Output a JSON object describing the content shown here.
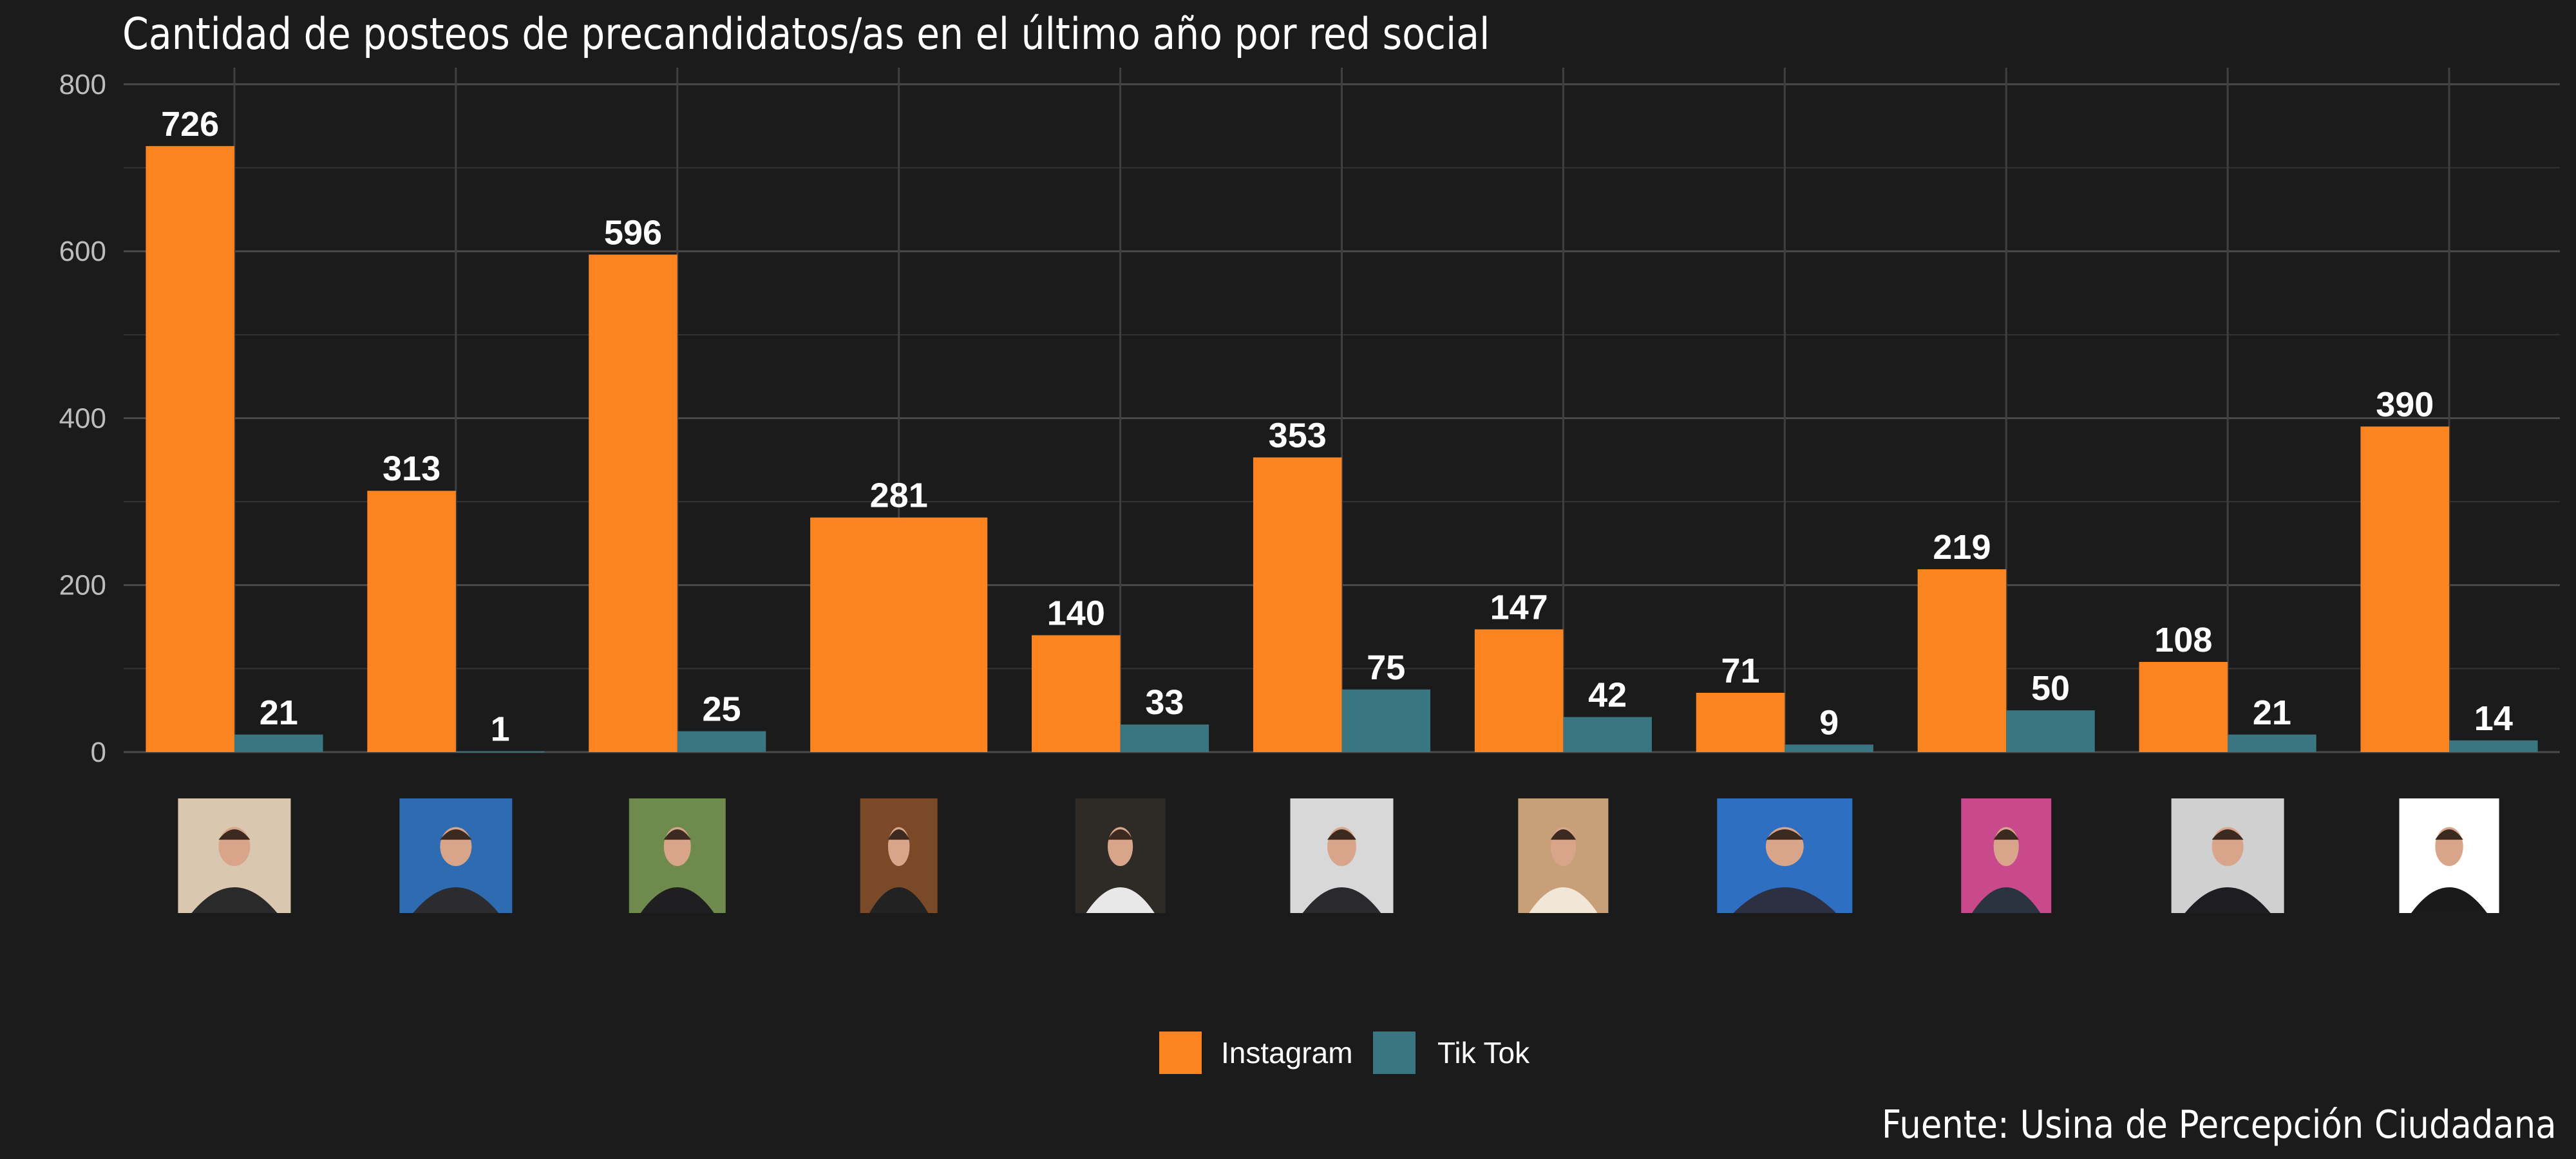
{
  "chart_data": {
    "type": "bar",
    "title": "Cantidad de posteos de precandidatos/as en el último año por red social",
    "xlabel": "",
    "ylabel": "",
    "ylim": [
      0,
      820
    ],
    "yticks": [
      0,
      200,
      400,
      600,
      800
    ],
    "grid": true,
    "legend_position": "bottom",
    "categories": [
      "",
      "",
      "",
      "",
      "",
      "",
      "",
      "",
      "",
      "",
      ""
    ],
    "series": [
      {
        "name": "Instagram",
        "color": "#fb8420",
        "values": [
          726,
          313,
          596,
          281,
          140,
          353,
          147,
          71,
          219,
          108,
          390
        ]
      },
      {
        "name": "Tik Tok",
        "color": "#3a7582",
        "values": [
          21,
          1,
          25,
          null,
          33,
          75,
          42,
          9,
          50,
          21,
          14
        ]
      }
    ]
  },
  "candidate_photos": [
    "woman-at-desk-photo",
    "man-suit-blue-background-photo",
    "man-applauding-photo",
    "man-at-desk-photo",
    "man-speaking-microphone-photo",
    "man-hands-clasped-photo",
    "woman-speaking-microphone-photo",
    "man-tv-studio-photo",
    "man-pink-background-photo",
    "man-grey-background-photo",
    "man-white-background-photo"
  ],
  "source": "Fuente: Usina de Percepción Ciudadana"
}
